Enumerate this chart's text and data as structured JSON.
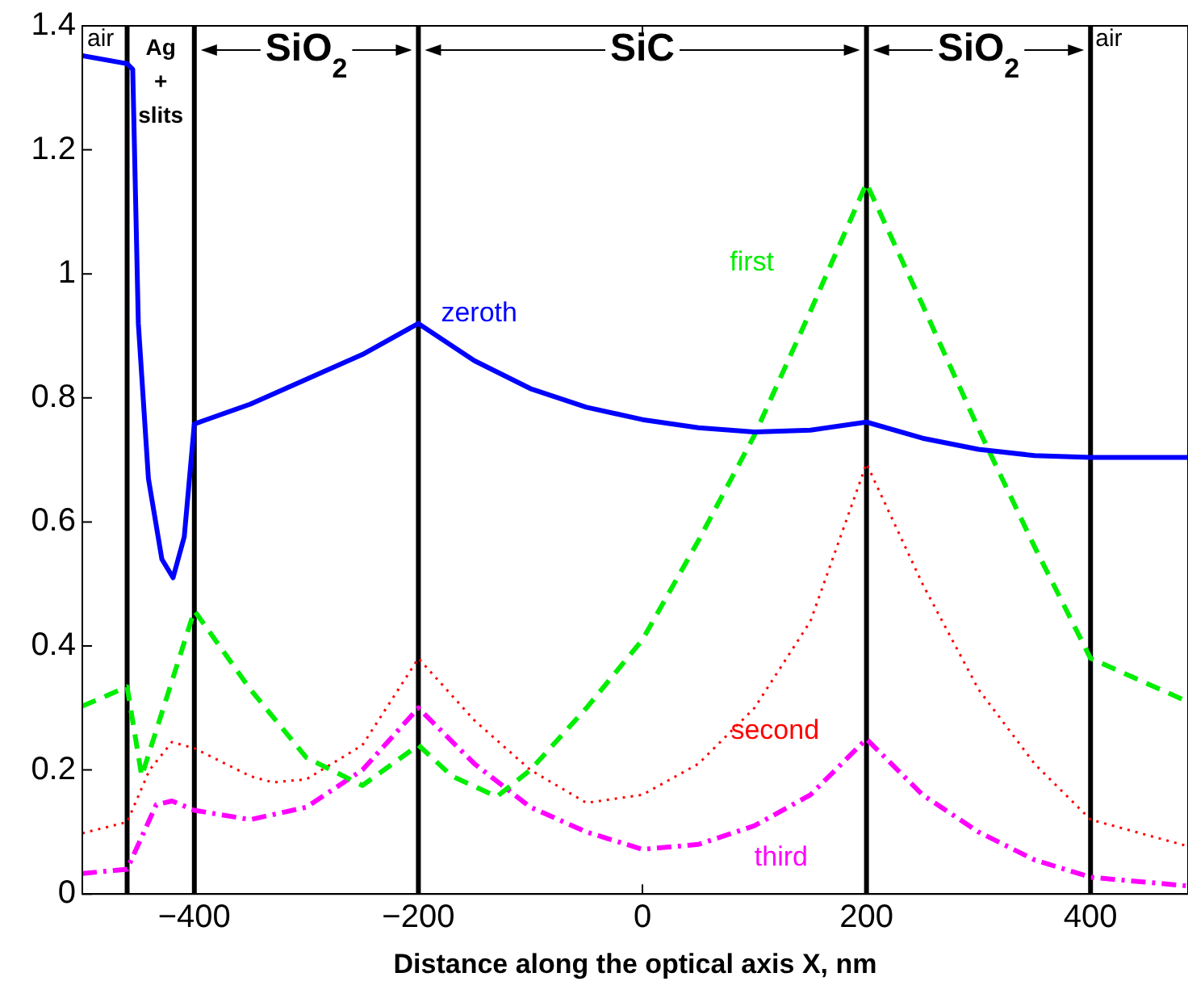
{
  "chart_data": {
    "type": "line",
    "xlabel": "Distance along the optical axis X, nm",
    "xlim": [
      -500,
      487
    ],
    "ylim": [
      0,
      1.4
    ],
    "xticks": [
      {
        "value": -400,
        "label": "−400"
      },
      {
        "value": -200,
        "label": "−200"
      },
      0,
      200,
      400
    ],
    "yticks": [
      0,
      0.2,
      0.4,
      0.6,
      0.8,
      1,
      1.2,
      1.4
    ],
    "legend": false,
    "series": [
      {
        "name": "zeroth",
        "color": "#0000ff",
        "line_style": "solid",
        "x": [
          -500,
          -460,
          -455,
          -450,
          -441,
          -429,
          -419,
          -409,
          -400,
          -350,
          -300,
          -250,
          -200,
          -150,
          -100,
          -50,
          0,
          50,
          100,
          150,
          200,
          250,
          300,
          350,
          400,
          487
        ],
        "values": [
          1.352,
          1.339,
          1.33,
          0.92,
          0.67,
          0.54,
          0.51,
          0.576,
          0.758,
          0.79,
          0.83,
          0.87,
          0.92,
          0.86,
          0.815,
          0.785,
          0.765,
          0.752,
          0.745,
          0.748,
          0.761,
          0.735,
          0.717,
          0.707,
          0.704,
          0.704
        ]
      },
      {
        "name": "first",
        "color": "#00ee00",
        "line_style": "dashed",
        "x": [
          -500,
          -460,
          -447,
          -400,
          -350,
          -300,
          -250,
          -200,
          -170,
          -130,
          -100,
          -50,
          0,
          50,
          100,
          150,
          200,
          250,
          300,
          350,
          400,
          487
        ],
        "values": [
          0.303,
          0.334,
          0.19,
          0.457,
          0.33,
          0.22,
          0.175,
          0.24,
          0.19,
          0.157,
          0.2,
          0.3,
          0.41,
          0.57,
          0.74,
          0.94,
          1.146,
          0.95,
          0.75,
          0.56,
          0.38,
          0.31
        ]
      },
      {
        "name": "second",
        "color": "#ff0000",
        "line_style": "dotted",
        "x": [
          -500,
          -460,
          -440,
          -420,
          -400,
          -350,
          -330,
          -300,
          -250,
          -200,
          -150,
          -100,
          -50,
          0,
          50,
          100,
          150,
          200,
          250,
          300,
          350,
          400,
          487
        ],
        "values": [
          0.098,
          0.116,
          0.2,
          0.245,
          0.235,
          0.19,
          0.18,
          0.185,
          0.24,
          0.38,
          0.28,
          0.2,
          0.147,
          0.16,
          0.21,
          0.3,
          0.44,
          0.694,
          0.5,
          0.33,
          0.21,
          0.12,
          0.077
        ]
      },
      {
        "name": "third",
        "color": "#ff00ff",
        "line_style": "dashdot",
        "x": [
          -500,
          -460,
          -434,
          -420,
          -400,
          -350,
          -300,
          -250,
          -200,
          -150,
          -100,
          -50,
          0,
          50,
          100,
          150,
          200,
          250,
          300,
          350,
          400,
          487
        ],
        "values": [
          0.033,
          0.04,
          0.144,
          0.15,
          0.135,
          0.12,
          0.14,
          0.2,
          0.3,
          0.21,
          0.14,
          0.1,
          0.072,
          0.08,
          0.11,
          0.16,
          0.25,
          0.16,
          0.1,
          0.055,
          0.027,
          0.013
        ]
      }
    ],
    "ref_lines": [
      {
        "axis": "x",
        "value": -460,
        "color": "#000000"
      },
      {
        "axis": "x",
        "value": -400,
        "color": "#000000"
      },
      {
        "axis": "x",
        "value": -200,
        "color": "#000000"
      },
      {
        "axis": "x",
        "value": 200,
        "color": "#000000"
      },
      {
        "axis": "x",
        "value": 400,
        "color": "#000000"
      }
    ],
    "annotations": [
      "air",
      "Ag + slits",
      "SiO$_{2}$",
      "SiC",
      "SiO$_{2}$",
      "air"
    ]
  }
}
